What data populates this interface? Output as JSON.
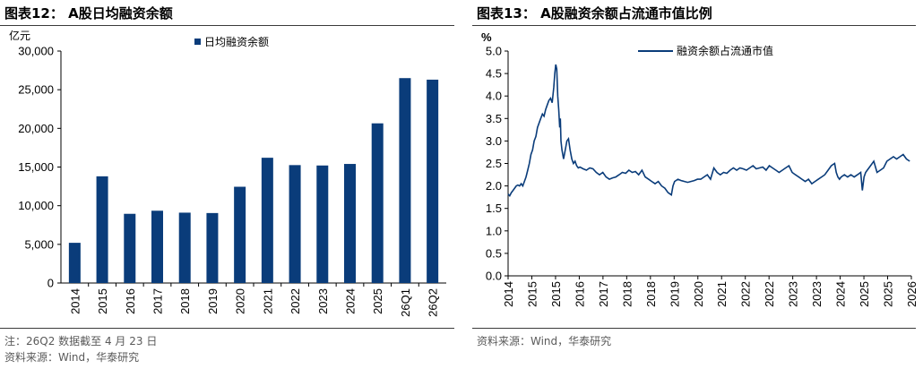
{
  "left": {
    "title": "图表12：  A股日均融资余额",
    "unit": "亿元",
    "note1": "注：26Q2 数据截至 4 月 23 日",
    "note2": "资料来源：Wind，华泰研究"
  },
  "right": {
    "title": "图表13：  A股融资余额占流通市值比例",
    "unit": "%",
    "note": "资料来源：Wind，华泰研究"
  },
  "colors": {
    "series": "#0a3c7a",
    "axis": "#000000",
    "rule": "#3a3a3a"
  },
  "chart_data": [
    {
      "type": "bar",
      "title": "",
      "ylabel": "亿元",
      "categories": [
        "2014",
        "2015",
        "2016",
        "2017",
        "2018",
        "2019",
        "2020",
        "2021",
        "2022",
        "2023",
        "2024",
        "2025",
        "26Q1",
        "26Q2"
      ],
      "series": [
        {
          "name": "日均融资余额",
          "values": [
            5200,
            13800,
            8950,
            9350,
            9100,
            9050,
            12450,
            16200,
            15250,
            15200,
            15400,
            20650,
            26500,
            26300
          ]
        }
      ],
      "ylim": [
        0,
        30000
      ],
      "yticks": [
        "0",
        "5,000",
        "10,000",
        "15,000",
        "20,000",
        "25,000",
        "30,000"
      ],
      "legend": "top-center",
      "grid": false
    },
    {
      "type": "line",
      "title": "",
      "ylabel": "%",
      "x_ticks": [
        "2014",
        "2015",
        "2015",
        "2016",
        "2017",
        "2018",
        "2018",
        "2019",
        "2020",
        "2021",
        "2022",
        "2022",
        "2023",
        "2023",
        "2024",
        "2025",
        "2025",
        "2026"
      ],
      "xlim": [
        2014.0,
        2026.35
      ],
      "ylim": [
        0,
        5.0
      ],
      "yticks": [
        "0.0",
        "0.5",
        "1.0",
        "1.5",
        "2.0",
        "2.5",
        "3.0",
        "3.5",
        "4.0",
        "4.5",
        "5.0"
      ],
      "series": [
        {
          "name": "融资余额占流通市值",
          "x": [
            2014.0,
            2014.05,
            2014.1,
            2014.15,
            2014.2,
            2014.25,
            2014.3,
            2014.35,
            2014.4,
            2014.45,
            2014.5,
            2014.55,
            2014.6,
            2014.65,
            2014.7,
            2014.75,
            2014.8,
            2014.85,
            2014.9,
            2014.95,
            2015.0,
            2015.05,
            2015.1,
            2015.15,
            2015.2,
            2015.25,
            2015.3,
            2015.35,
            2015.4,
            2015.43,
            2015.46,
            2015.49,
            2015.52,
            2015.55,
            2015.58,
            2015.6,
            2015.62,
            2015.65,
            2015.7,
            2015.75,
            2015.8,
            2015.85,
            2015.9,
            2015.95,
            2016.0,
            2016.05,
            2016.1,
            2016.15,
            2016.2,
            2016.3,
            2016.4,
            2016.5,
            2016.6,
            2016.7,
            2016.8,
            2016.9,
            2017.0,
            2017.1,
            2017.2,
            2017.3,
            2017.4,
            2017.5,
            2017.6,
            2017.7,
            2017.8,
            2017.9,
            2018.0,
            2018.1,
            2018.2,
            2018.3,
            2018.4,
            2018.5,
            2018.6,
            2018.7,
            2018.8,
            2018.9,
            2019.0,
            2019.05,
            2019.1,
            2019.2,
            2019.3,
            2019.4,
            2019.5,
            2019.6,
            2019.7,
            2019.8,
            2019.9,
            2020.0,
            2020.1,
            2020.2,
            2020.3,
            2020.4,
            2020.5,
            2020.6,
            2020.7,
            2020.8,
            2020.9,
            2021.0,
            2021.1,
            2021.2,
            2021.3,
            2021.4,
            2021.5,
            2021.6,
            2021.7,
            2021.8,
            2021.9,
            2022.0,
            2022.1,
            2022.2,
            2022.3,
            2022.4,
            2022.5,
            2022.6,
            2022.7,
            2022.8,
            2022.9,
            2023.0,
            2023.1,
            2023.2,
            2023.3,
            2023.4,
            2023.5,
            2023.6,
            2023.7,
            2023.8,
            2023.9,
            2024.0,
            2024.05,
            2024.1,
            2024.15,
            2024.2,
            2024.3,
            2024.4,
            2024.5,
            2024.6,
            2024.7,
            2024.8,
            2024.85,
            2024.9,
            2024.95,
            2025.0,
            2025.1,
            2025.2,
            2025.3,
            2025.4,
            2025.5,
            2025.6,
            2025.7,
            2025.8,
            2025.9,
            2026.0,
            2026.1,
            2026.2,
            2026.3
          ],
          "y": [
            1.82,
            1.78,
            1.85,
            1.9,
            1.95,
            2.0,
            2.02,
            2.0,
            2.05,
            2.0,
            2.1,
            2.2,
            2.35,
            2.5,
            2.7,
            2.8,
            3.0,
            3.1,
            3.3,
            3.4,
            3.5,
            3.6,
            3.55,
            3.7,
            3.8,
            3.9,
            3.95,
            3.85,
            4.2,
            4.5,
            4.7,
            4.6,
            4.0,
            3.7,
            3.3,
            3.5,
            3.0,
            2.8,
            2.6,
            2.8,
            3.0,
            3.05,
            2.8,
            2.6,
            2.5,
            2.55,
            2.45,
            2.4,
            2.42,
            2.38,
            2.35,
            2.4,
            2.38,
            2.3,
            2.25,
            2.3,
            2.2,
            2.15,
            2.18,
            2.2,
            2.25,
            2.3,
            2.28,
            2.35,
            2.3,
            2.32,
            2.25,
            2.35,
            2.2,
            2.15,
            2.1,
            2.05,
            2.1,
            2.0,
            1.95,
            1.85,
            1.8,
            2.0,
            2.1,
            2.15,
            2.12,
            2.1,
            2.08,
            2.1,
            2.12,
            2.15,
            2.15,
            2.2,
            2.25,
            2.15,
            2.4,
            2.3,
            2.25,
            2.3,
            2.28,
            2.35,
            2.4,
            2.35,
            2.4,
            2.38,
            2.35,
            2.4,
            2.45,
            2.38,
            2.4,
            2.42,
            2.35,
            2.45,
            2.4,
            2.35,
            2.3,
            2.35,
            2.4,
            2.45,
            2.3,
            2.25,
            2.2,
            2.15,
            2.1,
            2.15,
            2.05,
            2.1,
            2.15,
            2.2,
            2.25,
            2.35,
            2.45,
            2.5,
            2.3,
            2.2,
            2.15,
            2.2,
            2.25,
            2.2,
            2.25,
            2.2,
            2.25,
            2.3,
            1.9,
            2.2,
            2.3,
            2.35,
            2.45,
            2.55,
            2.3,
            2.35,
            2.4,
            2.55,
            2.6,
            2.65,
            2.6,
            2.65,
            2.7,
            2.6,
            2.55
          ]
        }
      ],
      "legend": "top-center",
      "grid": false
    }
  ]
}
